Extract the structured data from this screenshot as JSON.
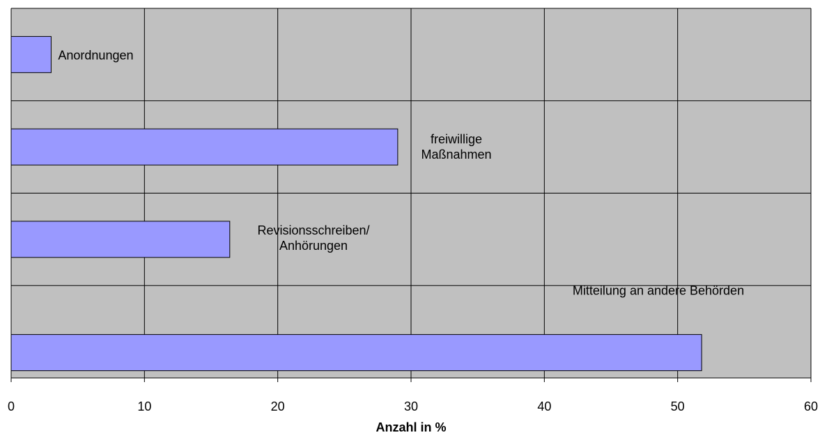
{
  "chart_data": {
    "type": "bar",
    "orientation": "horizontal",
    "xlabel": "Anzahl in %",
    "ylabel": "",
    "xlim": [
      0,
      60
    ],
    "x_ticks": [
      "0",
      "10",
      "20",
      "30",
      "40",
      "50",
      "60"
    ],
    "grid": true,
    "plot_background": "#c0c0c0",
    "bar_color": "#9999ff",
    "categories": [
      [
        "Anordnungen"
      ],
      [
        "freiwillige",
        "Maßnahmen"
      ],
      [
        "Revisionsschreiben/",
        "Anhörungen"
      ],
      [
        "Mitteilung an andere Behörden"
      ]
    ],
    "values": [
      3,
      29,
      16.4,
      51.8
    ]
  }
}
